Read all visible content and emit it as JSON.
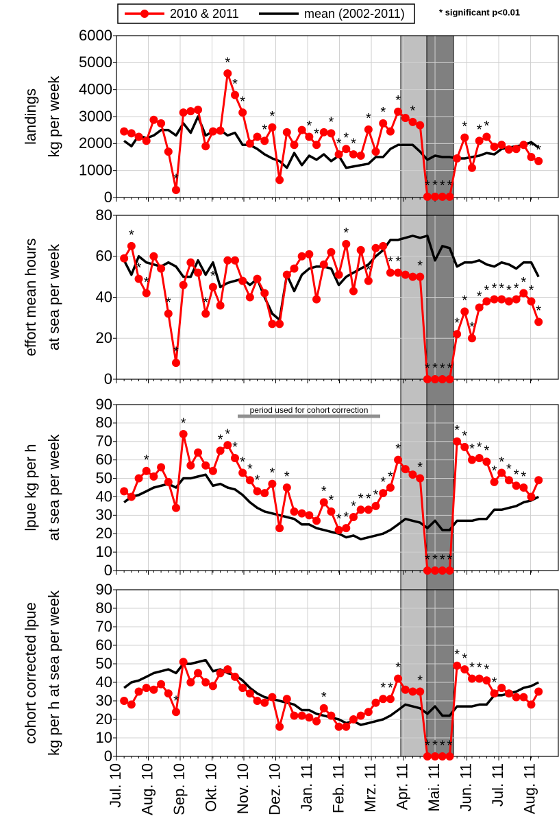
{
  "note": "* significant p<0.01",
  "chart_data": [
    {
      "type": "line",
      "ylabel": [
        "landings",
        "kg per week"
      ],
      "x": [
        0.24,
        0.47,
        0.7,
        0.94,
        1.17,
        1.4,
        1.63,
        1.87,
        2.1,
        2.33,
        2.56,
        2.8,
        3.03,
        3.26,
        3.49,
        3.72,
        3.96,
        4.19,
        4.42,
        4.65,
        4.89,
        5.12,
        5.35,
        5.58,
        5.82,
        6.05,
        6.28,
        6.51,
        6.74,
        6.98,
        7.21,
        7.44,
        7.67,
        7.91,
        8.14,
        8.37,
        8.6,
        8.84,
        9.07,
        9.3,
        9.53,
        9.76,
        10.0,
        10.23,
        10.46,
        10.69,
        10.93,
        11.16,
        11.39,
        11.62,
        11.86,
        12.09,
        12.32,
        12.55,
        12.78,
        13.02,
        13.25
      ],
      "xlim": [
        0,
        13.87
      ],
      "ylim": [
        0,
        6000
      ],
      "yticks": [
        0,
        1000,
        2000,
        3000,
        4000,
        5000,
        6000
      ],
      "grid": true,
      "series": [
        {
          "name": "2010 & 2011",
          "color": "#ff0000",
          "marker": "circle",
          "values": [
            2450,
            2380,
            2250,
            2100,
            2880,
            2750,
            1700,
            280,
            3150,
            3200,
            3250,
            1900,
            2450,
            2480,
            4600,
            3800,
            3150,
            2000,
            2250,
            2100,
            2600,
            650,
            2420,
            1950,
            2500,
            2250,
            1950,
            2420,
            2380,
            1600,
            1800,
            1600,
            1550,
            2520,
            1700,
            2750,
            2450,
            3180,
            2950,
            2800,
            2680,
            30,
            30,
            30,
            30,
            1450,
            2220,
            1100,
            2100,
            2250,
            1880,
            1950,
            1780,
            1800,
            1950,
            1500,
            1350
          ]
        },
        {
          "name": "mean (2002-2011)",
          "color": "#000000",
          "values": [
            2100,
            1900,
            2300,
            2200,
            2300,
            2500,
            2500,
            2300,
            2750,
            2400,
            3000,
            2300,
            2450,
            2500,
            2300,
            2400,
            1950,
            1950,
            1800,
            1600,
            1450,
            1350,
            1100,
            1650,
            1200,
            1550,
            1400,
            1600,
            1350,
            1550,
            1100,
            1150,
            1200,
            1250,
            1500,
            1500,
            1800,
            1950,
            1950,
            1950,
            1700,
            1400,
            1550,
            1500,
            1500,
            1450,
            1450,
            1500,
            1550,
            1650,
            1600,
            1800,
            1850,
            1900,
            1950,
            2050,
            1850
          ]
        }
      ],
      "significance": [
        null,
        null,
        null,
        null,
        null,
        null,
        null,
        "*",
        null,
        null,
        null,
        null,
        null,
        null,
        "*",
        "*",
        "*",
        null,
        null,
        "*",
        "*",
        null,
        null,
        null,
        null,
        "*",
        "*",
        null,
        "*",
        "*",
        "*",
        "*",
        null,
        "*",
        null,
        "*",
        null,
        "*",
        null,
        "*",
        null,
        "*",
        "*",
        "*",
        "*",
        null,
        "*",
        null,
        "*",
        "*",
        null,
        null,
        null,
        null,
        null,
        "*",
        "*"
      ]
    },
    {
      "type": "line",
      "ylabel": [
        "effort mean hours",
        "at sea per week"
      ],
      "x": [
        0.24,
        0.47,
        0.7,
        0.94,
        1.17,
        1.4,
        1.63,
        1.87,
        2.1,
        2.33,
        2.56,
        2.8,
        3.03,
        3.26,
        3.49,
        3.72,
        3.96,
        4.19,
        4.42,
        4.65,
        4.89,
        5.12,
        5.35,
        5.58,
        5.82,
        6.05,
        6.28,
        6.51,
        6.74,
        6.98,
        7.21,
        7.44,
        7.67,
        7.91,
        8.14,
        8.37,
        8.6,
        8.84,
        9.07,
        9.3,
        9.53,
        9.76,
        10.0,
        10.23,
        10.46,
        10.69,
        10.93,
        11.16,
        11.39,
        11.62,
        11.86,
        12.09,
        12.32,
        12.55,
        12.78,
        13.02,
        13.25
      ],
      "xlim": [
        0,
        13.87
      ],
      "ylim": [
        0,
        80
      ],
      "yticks": [
        0,
        20,
        40,
        60,
        80
      ],
      "grid": true,
      "series": [
        {
          "color": "#ff0000",
          "marker": "circle",
          "values": [
            59,
            65,
            49,
            42,
            60,
            54,
            32,
            8,
            46,
            57,
            52,
            32,
            45,
            36,
            58,
            58,
            48,
            40,
            49,
            42,
            27,
            27,
            51,
            54,
            60,
            61,
            39,
            56,
            62,
            51,
            66,
            43,
            63,
            48,
            64,
            65,
            52,
            52,
            51,
            50,
            50,
            0,
            0,
            0,
            0,
            22,
            33,
            20,
            35,
            38,
            39,
            39,
            38,
            39,
            42,
            38,
            28
          ]
        },
        {
          "color": "#000000",
          "values": [
            58,
            51,
            60,
            57,
            56,
            55,
            57,
            55,
            50,
            50,
            58,
            51,
            57,
            45,
            47,
            48,
            49,
            46,
            49,
            40,
            32,
            29,
            51,
            43,
            51,
            54,
            55,
            55,
            54,
            46,
            50,
            52,
            54,
            56,
            60,
            63,
            68,
            68,
            69,
            70,
            69,
            70,
            58,
            65,
            64,
            55,
            57,
            57,
            58,
            56,
            55,
            57,
            56,
            54,
            57,
            57,
            50
          ]
        }
      ],
      "significance": [
        null,
        "*",
        "*",
        "*",
        null,
        null,
        "*",
        "*",
        null,
        null,
        null,
        "*",
        "*",
        null,
        null,
        null,
        null,
        null,
        null,
        null,
        null,
        null,
        null,
        null,
        null,
        null,
        null,
        null,
        null,
        null,
        "*",
        null,
        null,
        "*",
        null,
        null,
        "*",
        "*",
        null,
        null,
        "*",
        "*",
        "*",
        "*",
        "*",
        "*",
        "*",
        "*",
        "*",
        "*",
        "*",
        "*",
        "*",
        "*",
        "*",
        "*",
        "*"
      ]
    },
    {
      "type": "line",
      "ylabel": [
        "lpue kg per h",
        "at sea per week"
      ],
      "annotation": "period used for cohort correction",
      "x": [
        0.24,
        0.47,
        0.7,
        0.94,
        1.17,
        1.4,
        1.63,
        1.87,
        2.1,
        2.33,
        2.56,
        2.8,
        3.03,
        3.26,
        3.49,
        3.72,
        3.96,
        4.19,
        4.42,
        4.65,
        4.89,
        5.12,
        5.35,
        5.58,
        5.82,
        6.05,
        6.28,
        6.51,
        6.74,
        6.98,
        7.21,
        7.44,
        7.67,
        7.91,
        8.14,
        8.37,
        8.6,
        8.84,
        9.07,
        9.3,
        9.53,
        9.76,
        10.0,
        10.23,
        10.46,
        10.69,
        10.93,
        11.16,
        11.39,
        11.62,
        11.86,
        12.09,
        12.32,
        12.55,
        12.78,
        13.02,
        13.25
      ],
      "xlim": [
        0,
        13.87
      ],
      "ylim": [
        0,
        90
      ],
      "yticks": [
        0,
        10,
        20,
        30,
        40,
        50,
        60,
        70,
        80,
        90
      ],
      "grid": true,
      "series": [
        {
          "color": "#ff0000",
          "marker": "circle",
          "values": [
            43,
            40,
            50,
            54,
            51,
            56,
            48,
            34,
            74,
            57,
            64,
            57,
            54,
            65,
            68,
            61,
            53,
            49,
            43,
            42,
            47,
            23,
            45,
            32,
            31,
            30,
            27,
            37,
            32,
            22,
            23,
            29,
            33,
            33,
            35,
            42,
            45,
            60,
            55,
            52,
            50,
            0,
            0,
            0,
            0,
            70,
            67,
            60,
            61,
            59,
            48,
            53,
            49,
            46,
            45,
            40,
            49
          ]
        },
        {
          "color": "#000000",
          "values": [
            37,
            40,
            41,
            43,
            45,
            46,
            47,
            45,
            50,
            50,
            51,
            52,
            46,
            47,
            45,
            44,
            41,
            37,
            34,
            32,
            31,
            30,
            29,
            28,
            25,
            25,
            23,
            22,
            21,
            20,
            18,
            19,
            17,
            18,
            19,
            20,
            22,
            25,
            28,
            27,
            26,
            23,
            27,
            22,
            22,
            27,
            27,
            27,
            28,
            28,
            33,
            33,
            34,
            35,
            37,
            38,
            40
          ]
        }
      ],
      "significance": [
        null,
        null,
        null,
        "*",
        null,
        null,
        null,
        null,
        "*",
        null,
        null,
        null,
        null,
        "*",
        "*",
        "*",
        "*",
        "*",
        "*",
        null,
        "*",
        null,
        "*",
        null,
        null,
        null,
        null,
        "*",
        "*",
        "*",
        "*",
        "*",
        "*",
        "*",
        "*",
        "*",
        "*",
        "*",
        null,
        null,
        "*",
        "*",
        "*",
        "*",
        "*",
        "*",
        "*",
        "*",
        "*",
        "*",
        "*",
        "*",
        "*",
        "*",
        "*",
        null,
        null
      ]
    },
    {
      "type": "line",
      "ylabel": [
        "cohort corrected lpue",
        "kg per h at sea per week"
      ],
      "x": [
        0.24,
        0.47,
        0.7,
        0.94,
        1.17,
        1.4,
        1.63,
        1.87,
        2.1,
        2.33,
        2.56,
        2.8,
        3.03,
        3.26,
        3.49,
        3.72,
        3.96,
        4.19,
        4.42,
        4.65,
        4.89,
        5.12,
        5.35,
        5.58,
        5.82,
        6.05,
        6.28,
        6.51,
        6.74,
        6.98,
        7.21,
        7.44,
        7.67,
        7.91,
        8.14,
        8.37,
        8.6,
        8.84,
        9.07,
        9.3,
        9.53,
        9.76,
        10.0,
        10.23,
        10.46,
        10.69,
        10.93,
        11.16,
        11.39,
        11.62,
        11.86,
        12.09,
        12.32,
        12.55,
        12.78,
        13.02,
        13.25
      ],
      "xlim": [
        0,
        13.87
      ],
      "ylim": [
        0,
        90
      ],
      "yticks": [
        0,
        10,
        20,
        30,
        40,
        50,
        60,
        70,
        80,
        90
      ],
      "grid": true,
      "xticks": [
        {
          "value": 0,
          "label": "Jul. 10"
        },
        {
          "value": 1,
          "label": "Aug. 10"
        },
        {
          "value": 2,
          "label": "Sep. 10"
        },
        {
          "value": 3,
          "label": "Okt. 10"
        },
        {
          "value": 4,
          "label": "Nov. 10"
        },
        {
          "value": 5,
          "label": "Dez. 10"
        },
        {
          "value": 6,
          "label": "Jan. 11"
        },
        {
          "value": 7,
          "label": "Feb. 11"
        },
        {
          "value": 8,
          "label": "Mrz. 11"
        },
        {
          "value": 9,
          "label": "Apr. 11"
        },
        {
          "value": 10,
          "label": "Mai. 11"
        },
        {
          "value": 11,
          "label": "Jun. 11"
        },
        {
          "value": 12,
          "label": "Jul. 11"
        },
        {
          "value": 13,
          "label": "Aug. 11"
        }
      ],
      "series": [
        {
          "color": "#ff0000",
          "marker": "circle",
          "values": [
            30,
            28,
            35,
            37,
            36,
            39,
            34,
            24,
            51,
            40,
            45,
            40,
            38,
            45,
            47,
            43,
            37,
            34,
            30,
            29,
            32,
            16,
            31,
            22,
            22,
            21,
            19,
            26,
            22,
            16,
            16,
            20,
            22,
            24,
            29,
            31,
            31,
            42,
            36,
            35,
            35,
            0,
            0,
            0,
            0,
            49,
            47,
            42,
            42,
            41,
            34,
            37,
            34,
            32,
            32,
            28,
            35
          ]
        },
        {
          "color": "#000000",
          "values": [
            37,
            40,
            41,
            43,
            45,
            46,
            47,
            45,
            50,
            50,
            51,
            52,
            46,
            47,
            45,
            44,
            41,
            37,
            34,
            32,
            31,
            30,
            29,
            28,
            25,
            25,
            23,
            22,
            21,
            20,
            18,
            19,
            17,
            18,
            19,
            20,
            22,
            25,
            28,
            27,
            26,
            23,
            27,
            22,
            22,
            27,
            27,
            27,
            28,
            28,
            33,
            33,
            34,
            35,
            37,
            38,
            40
          ]
        }
      ],
      "significance": [
        null,
        null,
        null,
        null,
        null,
        null,
        null,
        "*",
        null,
        null,
        null,
        null,
        null,
        null,
        null,
        null,
        null,
        null,
        null,
        null,
        null,
        null,
        null,
        null,
        null,
        null,
        null,
        "*",
        null,
        null,
        null,
        null,
        null,
        null,
        null,
        "*",
        "*",
        "*",
        null,
        null,
        "*",
        "*",
        "*",
        "*",
        "*",
        "*",
        "*",
        "*",
        "*",
        "*",
        "*",
        null,
        null,
        null,
        null,
        null,
        null
      ]
    }
  ]
}
